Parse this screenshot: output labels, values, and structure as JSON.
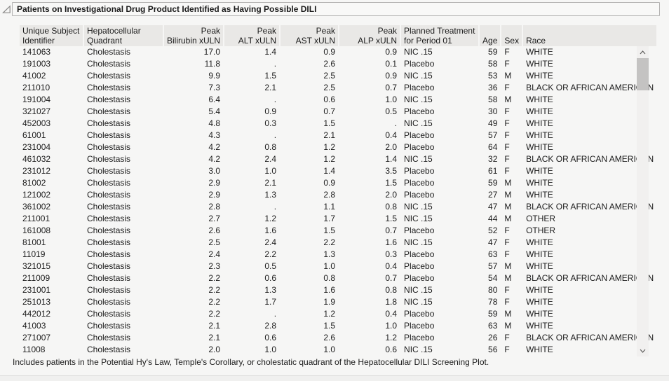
{
  "title": "Patients on Investigational Drug Product Identified as Having Possible DILI",
  "footnote": "Includes patients in the Potential Hy's Law, Temple's Corollary, or cholestatic quadrant of the Hepatocellular DILI Screening Plot.",
  "icons": {
    "disclosure": "disclosure-triangle-open",
    "scroll_up": "chevron-up",
    "scroll_down": "chevron-down"
  },
  "colors": {
    "page_bg": "#f6f6f5",
    "header_bg": "#e9e8e6",
    "title_border": "#b3b2b1",
    "scrollbar_track": "#f1f0ef",
    "scrollbar_thumb": "#c4c3c2",
    "text": "#1b1b1b"
  },
  "table": {
    "columns": [
      {
        "id": "unique-subject-identifier",
        "line1": "Unique Subject",
        "line2": "Identifier",
        "align": "left",
        "width": 90
      },
      {
        "id": "hepatocellular-quadrant",
        "line1": "Hepatocellular",
        "line2": "Quadrant",
        "align": "left",
        "width": 112
      },
      {
        "id": "peak-bilirubin-xuln",
        "line1": "Peak",
        "line2": "Bilirubin xULN",
        "align": "right",
        "width": 78
      },
      {
        "id": "peak-alt-xuln",
        "line1": "Peak",
        "line2": "ALT xULN",
        "align": "right",
        "width": 78
      },
      {
        "id": "peak-ast-xuln",
        "line1": "Peak",
        "line2": "AST xULN",
        "align": "right",
        "width": 82
      },
      {
        "id": "peak-alp-xuln",
        "line1": "Peak",
        "line2": "ALP xULN",
        "align": "right",
        "width": 86
      },
      {
        "id": "planned-treatment",
        "line1": "Planned Treatment",
        "line2": "for Period 01",
        "align": "left",
        "width": 110
      },
      {
        "id": "age",
        "line1": "",
        "line2": "Age",
        "align": "right",
        "width": 28
      },
      {
        "id": "sex",
        "line1": "",
        "line2": "Sex",
        "align": "left",
        "width": 26
      },
      {
        "id": "race",
        "line1": "",
        "line2": "Race",
        "align": "left",
        "width": 170
      }
    ],
    "rows": [
      [
        "141063",
        "Cholestasis",
        "17.0",
        "1.4",
        "0.9",
        "0.9",
        "NIC .15",
        "59",
        "F",
        "WHITE"
      ],
      [
        "191003",
        "Cholestasis",
        "11.8",
        ".",
        "2.6",
        "0.1",
        "Placebo",
        "58",
        "F",
        "WHITE"
      ],
      [
        "41002",
        "Cholestasis",
        "9.9",
        "1.5",
        "2.5",
        "0.9",
        "NIC .15",
        "53",
        "M",
        "WHITE"
      ],
      [
        "211010",
        "Cholestasis",
        "7.3",
        "2.1",
        "2.5",
        "0.7",
        "Placebo",
        "36",
        "F",
        "BLACK OR AFRICAN AMERICAN"
      ],
      [
        "191004",
        "Cholestasis",
        "6.4",
        ".",
        "0.6",
        "1.0",
        "NIC .15",
        "58",
        "M",
        "WHITE"
      ],
      [
        "321027",
        "Cholestasis",
        "5.4",
        "0.9",
        "0.7",
        "0.5",
        "Placebo",
        "30",
        "F",
        "WHITE"
      ],
      [
        "452003",
        "Cholestasis",
        "4.8",
        "0.3",
        "1.5",
        ".",
        "NIC .15",
        "49",
        "F",
        "WHITE"
      ],
      [
        "61001",
        "Cholestasis",
        "4.3",
        ".",
        "2.1",
        "0.4",
        "Placebo",
        "57",
        "F",
        "WHITE"
      ],
      [
        "231004",
        "Cholestasis",
        "4.2",
        "0.8",
        "1.2",
        "2.0",
        "Placebo",
        "64",
        "F",
        "WHITE"
      ],
      [
        "461032",
        "Cholestasis",
        "4.2",
        "2.4",
        "1.2",
        "1.4",
        "NIC .15",
        "32",
        "F",
        "BLACK OR AFRICAN AMERICAN"
      ],
      [
        "231012",
        "Cholestasis",
        "3.0",
        "1.0",
        "1.4",
        "3.5",
        "Placebo",
        "61",
        "F",
        "WHITE"
      ],
      [
        "81002",
        "Cholestasis",
        "2.9",
        "2.1",
        "0.9",
        "1.5",
        "Placebo",
        "59",
        "M",
        "WHITE"
      ],
      [
        "121002",
        "Cholestasis",
        "2.9",
        "1.3",
        "2.8",
        "2.0",
        "Placebo",
        "27",
        "M",
        "WHITE"
      ],
      [
        "361002",
        "Cholestasis",
        "2.8",
        ".",
        "1.1",
        "0.8",
        "NIC .15",
        "47",
        "M",
        "BLACK OR AFRICAN AMERICAN"
      ],
      [
        "211001",
        "Cholestasis",
        "2.7",
        "1.2",
        "1.7",
        "1.5",
        "NIC .15",
        "44",
        "M",
        "OTHER"
      ],
      [
        "161008",
        "Cholestasis",
        "2.6",
        "1.6",
        "1.5",
        "0.7",
        "Placebo",
        "52",
        "F",
        "OTHER"
      ],
      [
        "81001",
        "Cholestasis",
        "2.5",
        "2.4",
        "2.2",
        "1.6",
        "NIC .15",
        "47",
        "F",
        "WHITE"
      ],
      [
        "11019",
        "Cholestasis",
        "2.4",
        "2.2",
        "1.3",
        "0.3",
        "Placebo",
        "63",
        "F",
        "WHITE"
      ],
      [
        "321015",
        "Cholestasis",
        "2.3",
        "0.5",
        "1.0",
        "0.4",
        "Placebo",
        "57",
        "M",
        "WHITE"
      ],
      [
        "211009",
        "Cholestasis",
        "2.2",
        "0.6",
        "0.8",
        "0.7",
        "Placebo",
        "54",
        "M",
        "BLACK OR AFRICAN AMERICAN"
      ],
      [
        "231001",
        "Cholestasis",
        "2.2",
        "1.3",
        "1.6",
        "0.8",
        "NIC .15",
        "80",
        "F",
        "WHITE"
      ],
      [
        "251013",
        "Cholestasis",
        "2.2",
        "1.7",
        "1.9",
        "1.8",
        "NIC .15",
        "78",
        "F",
        "WHITE"
      ],
      [
        "442012",
        "Cholestasis",
        "2.2",
        ".",
        "1.2",
        "0.4",
        "Placebo",
        "59",
        "M",
        "WHITE"
      ],
      [
        "41003",
        "Cholestasis",
        "2.1",
        "2.8",
        "1.5",
        "1.0",
        "Placebo",
        "63",
        "M",
        "WHITE"
      ],
      [
        "271007",
        "Cholestasis",
        "2.1",
        "0.6",
        "2.6",
        "1.2",
        "Placebo",
        "26",
        "F",
        "BLACK OR AFRICAN AMERICAN"
      ],
      [
        "11008",
        "Cholestasis",
        "2.0",
        "1.0",
        "1.0",
        "0.6",
        "NIC .15",
        "56",
        "F",
        "WHITE"
      ]
    ]
  }
}
